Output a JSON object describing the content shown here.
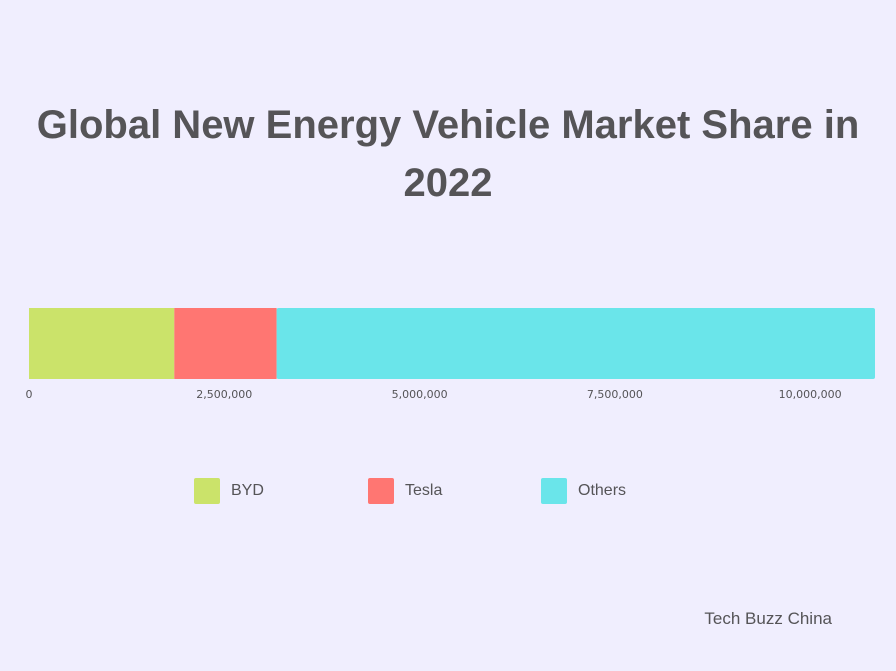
{
  "chart_data": {
    "type": "bar",
    "orientation": "horizontal",
    "stacked": true,
    "title": "Global New Energy Vehicle Market Share in 2022",
    "categories": [
      ""
    ],
    "series": [
      {
        "name": "BYD",
        "values": [
          1860000
        ],
        "color": "#cbe36a"
      },
      {
        "name": "Tesla",
        "values": [
          1310000
        ],
        "color": "#ff7672"
      },
      {
        "name": "Others",
        "values": [
          7660000
        ],
        "color": "#6ae5ea"
      }
    ],
    "xlim": [
      0,
      10830000
    ],
    "x_ticks": [
      0,
      2500000,
      5000000,
      7500000,
      10000000
    ],
    "x_tick_labels": [
      "0",
      "2,500,000",
      "5,000,000",
      "7,500,000",
      "10,000,000"
    ],
    "grid": false,
    "legend_position": "bottom"
  },
  "source": "Tech Buzz China"
}
